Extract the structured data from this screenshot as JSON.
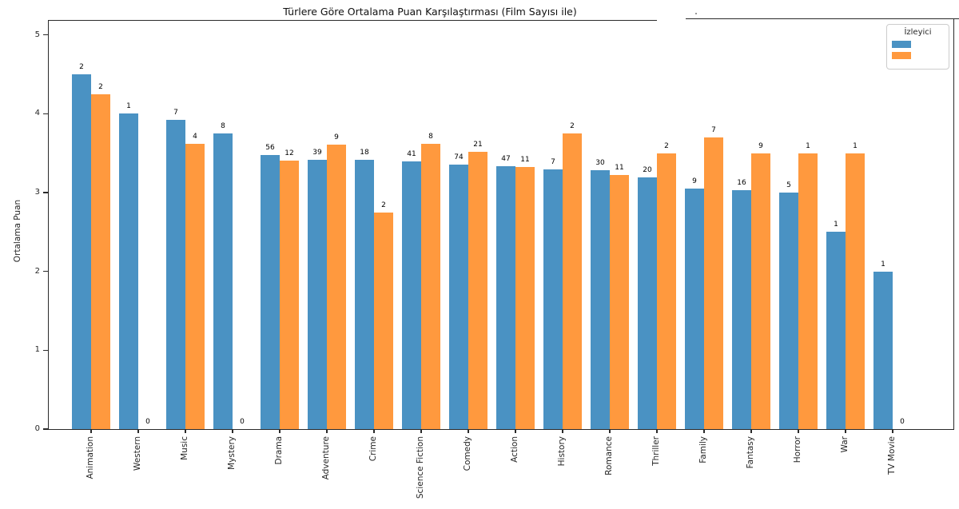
{
  "figure": {
    "title": "Türlere Göre Ortalama Puan Karşılaştırması (Film Sayısı ile)",
    "ylabel": "Ortalama Puan"
  },
  "legend": {
    "title": "İzleyici",
    "entries": [
      {
        "label": "",
        "color": "#4a92c3"
      },
      {
        "label": "",
        "color": "#ff993e"
      }
    ]
  },
  "chart_data": {
    "type": "bar",
    "title": "Türlere Göre Ortalama Puan Karşılaştırması (Film Sayısı ile)",
    "xlabel": "",
    "ylabel": "Ortalama Puan",
    "ylim": [
      0,
      5.19
    ],
    "yticks": [
      0,
      1,
      2,
      3,
      4,
      5
    ],
    "grid": false,
    "legend_title": "İzleyici",
    "legend_position": "upper right",
    "bar_label_meaning": "film count shown above each bar",
    "categories": [
      "Animation",
      "Western",
      "Music",
      "Mystery",
      "Drama",
      "Adventure",
      "Crime",
      "Science Fiction",
      "Comedy",
      "Action",
      "History",
      "Romance",
      "Thriller",
      "Family",
      "Fantasy",
      "Horror",
      "War",
      "TV Movie"
    ],
    "series": [
      {
        "name": "",
        "color": "#4a92c3",
        "values": [
          4.5,
          4.0,
          3.92,
          3.75,
          3.48,
          3.42,
          3.42,
          3.4,
          3.36,
          3.33,
          3.29,
          3.28,
          3.19,
          3.05,
          3.03,
          3.0,
          2.5,
          2.0
        ],
        "bar_labels": [
          "2",
          "1",
          "7",
          "8",
          "56",
          "39",
          "18",
          "41",
          "74",
          "47",
          "7",
          "30",
          "20",
          "9",
          "16",
          "5",
          "1",
          "1"
        ]
      },
      {
        "name": "",
        "color": "#ff993e",
        "values": [
          4.25,
          0,
          3.62,
          0,
          3.41,
          3.61,
          2.75,
          3.62,
          3.52,
          3.32,
          3.75,
          3.22,
          3.5,
          3.7,
          3.5,
          3.5,
          3.5,
          0
        ],
        "bar_labels": [
          "2",
          "0",
          "4",
          "0",
          "12",
          "9",
          "2",
          "8",
          "21",
          "11",
          "2",
          "11",
          "2",
          "7",
          "9",
          "1",
          "1",
          "0"
        ]
      }
    ]
  }
}
